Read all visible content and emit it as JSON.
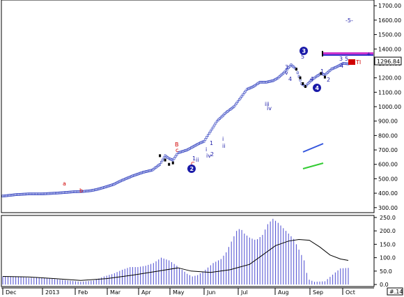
{
  "colors": {
    "price": "#2233bb",
    "correction": "#000000",
    "wave_blue": "#1a1aa8",
    "wave_red": "#d00000",
    "histogram": "#4a4ad0",
    "average": "#000000",
    "price_tag_bg": "#ffffff",
    "channel_blue": "#3355dd",
    "channel_green": "#33cc33",
    "target_magenta": "#cc33cc",
    "target_blue": "#3333cc"
  },
  "chart_data": [
    {
      "type": "line",
      "panel": "price",
      "y_ticks": [
        "1700.00",
        "1600.00",
        "1500.00",
        "1400.00",
        "1300.00",
        "1200.00",
        "1100.00",
        "1000.00",
        "900.00",
        "800.00",
        "700.00",
        "600.00",
        "500.00",
        "400.00",
        "300.00"
      ],
      "ylim": [
        270,
        1730
      ],
      "x_months": [
        "Dec",
        "2013",
        "Feb",
        "Mar",
        "Apr",
        "May",
        "Jun",
        "Jul",
        "Aug",
        "Sep",
        "Oct"
      ],
      "last_price_label": "1296.84",
      "x_index_range": [
        0,
        217
      ],
      "series": [
        {
          "points": [
            [
              0,
              380
            ],
            [
              10,
              390
            ],
            [
              20,
              395
            ],
            [
              30,
              395
            ],
            [
              40,
              400
            ],
            [
              48,
              405
            ],
            [
              55,
              410
            ],
            [
              62,
              412
            ],
            [
              68,
              418
            ],
            [
              72,
              425
            ],
            [
              78,
              440
            ],
            [
              85,
              460
            ],
            [
              92,
              490
            ],
            [
              100,
              520
            ],
            [
              108,
              545
            ],
            [
              115,
              560
            ],
            [
              121,
              600
            ],
            [
              125,
              660
            ],
            [
              128,
              640
            ],
            [
              131,
              630
            ],
            [
              135,
              680
            ],
            [
              142,
              700
            ],
            [
              150,
              740
            ],
            [
              155,
              760
            ],
            [
              160,
              830
            ],
            [
              165,
              900
            ],
            [
              172,
              960
            ],
            [
              178,
              1000
            ],
            [
              183,
              1060
            ],
            [
              188,
              1120
            ],
            [
              193,
              1140
            ],
            [
              198,
              1170
            ],
            [
              203,
              1170
            ],
            [
              208,
              1180
            ],
            [
              212,
              1200
            ],
            [
              217,
              1240
            ],
            [
              222,
              1290
            ],
            [
              226,
              1260
            ],
            [
              230,
              1160
            ],
            [
              233,
              1140
            ],
            [
              236,
              1170
            ],
            [
              240,
              1200
            ],
            [
              245,
              1230
            ],
            [
              248,
              1220
            ],
            [
              253,
              1260
            ],
            [
              258,
              1280
            ],
            [
              262,
              1300
            ],
            [
              266,
              1297
            ]
          ]
        },
        {
          "name": "correction",
          "points": [
            [
              121,
              660
            ],
            [
              125,
              630
            ],
            [
              128,
              600
            ],
            [
              131,
              610
            ],
            [
              226,
              1260
            ],
            [
              229,
              1200
            ],
            [
              231,
              1160
            ],
            [
              233,
              1140
            ],
            [
              245,
              1230
            ],
            [
              248,
              1205
            ]
          ]
        }
      ],
      "wave_labels_blue": [
        "1",
        "2",
        "i",
        "ii",
        "iii",
        "iv",
        "v",
        "3",
        "v",
        "4",
        "4",
        "5",
        "1",
        "2",
        "3",
        "4",
        "5",
        "-5-",
        "iii",
        "iv",
        "i",
        "ii",
        "1"
      ],
      "wave_labels_red": [
        "a",
        "b",
        "B",
        "c",
        "C",
        "TI"
      ],
      "wave_circles": [
        "2",
        "3",
        "4"
      ],
      "target_bars": [
        "+"
      ]
    },
    {
      "type": "bar",
      "panel": "indicator",
      "y_ticks": [
        "250.0",
        "200.0",
        "150.0",
        "100.0",
        "50.0",
        "0.0"
      ],
      "ylim": [
        -5,
        255
      ],
      "x_months": [
        "Dec",
        "2013",
        "Feb",
        "Mar",
        "Apr",
        "May",
        "Jun",
        "Jul",
        "Aug",
        "Sep",
        "Oct"
      ],
      "panel_number": "#.14",
      "series": [
        {
          "name": "histogram",
          "points": [
            [
              0,
              30
            ],
            [
              10,
              30
            ],
            [
              20,
              25
            ],
            [
              30,
              25
            ],
            [
              40,
              20
            ],
            [
              50,
              15
            ],
            [
              60,
              10
            ],
            [
              70,
              15
            ],
            [
              78,
              30
            ],
            [
              85,
              40
            ],
            [
              92,
              55
            ],
            [
              98,
              65
            ],
            [
              104,
              65
            ],
            [
              110,
              70
            ],
            [
              116,
              80
            ],
            [
              122,
              100
            ],
            [
              128,
              90
            ],
            [
              134,
              70
            ],
            [
              138,
              55
            ],
            [
              142,
              40
            ],
            [
              146,
              30
            ],
            [
              150,
              35
            ],
            [
              156,
              55
            ],
            [
              162,
              80
            ],
            [
              168,
              95
            ],
            [
              172,
              120
            ],
            [
              176,
              160
            ],
            [
              180,
              200
            ],
            [
              183,
              210
            ],
            [
              186,
              190
            ],
            [
              190,
              175
            ],
            [
              195,
              165
            ],
            [
              200,
              185
            ],
            [
              204,
              225
            ],
            [
              208,
              245
            ],
            [
              212,
              230
            ],
            [
              216,
              210
            ],
            [
              220,
              190
            ],
            [
              224,
              170
            ],
            [
              228,
              130
            ],
            [
              232,
              90
            ],
            [
              235,
              20
            ],
            [
              240,
              10
            ],
            [
              248,
              12
            ],
            [
              256,
              45
            ],
            [
              260,
              60
            ],
            [
              266,
              62
            ]
          ]
        },
        {
          "name": "average",
          "points": [
            [
              0,
              30
            ],
            [
              20,
              28
            ],
            [
              40,
              22
            ],
            [
              60,
              15
            ],
            [
              80,
              22
            ],
            [
              100,
              35
            ],
            [
              120,
              50
            ],
            [
              135,
              62
            ],
            [
              145,
              50
            ],
            [
              160,
              45
            ],
            [
              175,
              55
            ],
            [
              190,
              75
            ],
            [
              200,
              110
            ],
            [
              210,
              145
            ],
            [
              220,
              162
            ],
            [
              228,
              168
            ],
            [
              236,
              165
            ],
            [
              244,
              140
            ],
            [
              252,
              110
            ],
            [
              260,
              95
            ],
            [
              266,
              90
            ]
          ]
        }
      ]
    }
  ]
}
